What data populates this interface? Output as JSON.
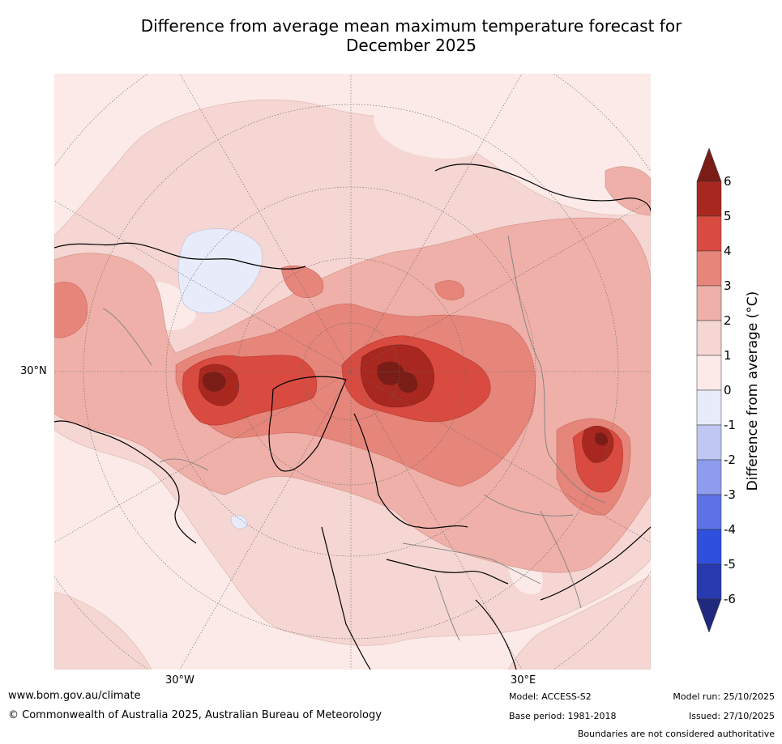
{
  "title_line1": "Difference from average mean maximum temperature forecast for",
  "title_line2": "December 2025",
  "axis_labels": {
    "lat_30n": "30°N",
    "lon_30w": "30°W",
    "lon_30e": "30°E"
  },
  "colorbar": {
    "title": "Difference from average (°C)",
    "ticks": [
      "6",
      "5",
      "4",
      "3",
      "2",
      "1",
      "0",
      "-1",
      "-2",
      "-3",
      "-4",
      "-5",
      "-6"
    ],
    "colors": {
      "above_6": "#7a1d17",
      "5_6": "#a82820",
      "4_5": "#d94b40",
      "3_4": "#e6857a",
      "2_3": "#eeb0a8",
      "1_2": "#f5d6d2",
      "0_1": "#fbeae7",
      "m1_0": "#e8ebfa",
      "m2_m1": "#c0c8f1",
      "m3_m2": "#8e9ced",
      "m4_m3": "#5d73e5",
      "m5_m4": "#2f4fdd",
      "m6_m5": "#2939b0",
      "below_m6": "#1f2a7e"
    }
  },
  "footer": {
    "website": "www.bom.gov.au/climate",
    "copyright": "© Commonwealth of Australia 2025, Australian Bureau of Meteorology",
    "model": "Model: ACCESS-S2",
    "base_period": "Base period: 1981-2018",
    "model_run": "Model run: 25/10/2025",
    "issued": "Issued: 27/10/2025",
    "disclaimer": "Boundaries are not considered authoritative"
  }
}
